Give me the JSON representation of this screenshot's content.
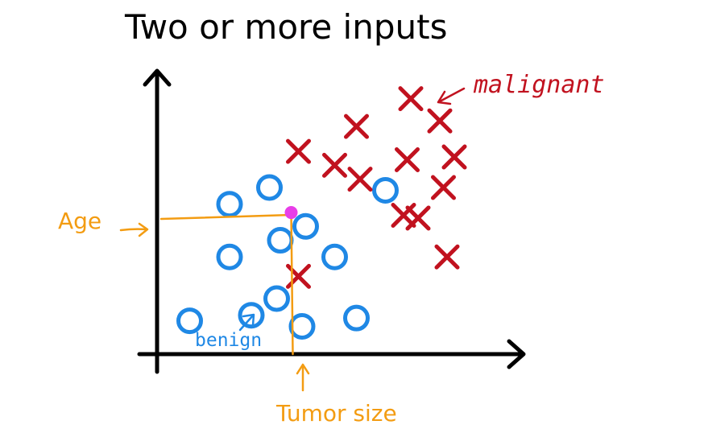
{
  "title": "Two or more inputs",
  "labels": {
    "age": "Age",
    "tumor_size": "Tumor size",
    "malignant": "malignant",
    "benign": "benign"
  },
  "colors": {
    "axis": "#000000",
    "benign": "#1f88e5",
    "malignant": "#c1121f",
    "annotation": "#f39c12",
    "query_point": "#e83ee8"
  },
  "chart_data": {
    "type": "scatter",
    "title": "Two or more inputs",
    "xlabel": "Tumor size",
    "ylabel": "Age",
    "xlim": [
      0,
      10
    ],
    "ylim": [
      0,
      10
    ],
    "grid": false,
    "series": [
      {
        "name": "benign",
        "marker": "circle",
        "points": [
          [
            0.9,
            1.2
          ],
          [
            2.0,
            3.5
          ],
          [
            2.0,
            5.4
          ],
          [
            2.6,
            1.4
          ],
          [
            3.1,
            6.0
          ],
          [
            3.3,
            2.0
          ],
          [
            3.4,
            4.1
          ],
          [
            4.1,
            4.6
          ],
          [
            4.0,
            1.0
          ],
          [
            4.9,
            3.5
          ],
          [
            5.5,
            1.3
          ],
          [
            6.3,
            5.9
          ]
        ]
      },
      {
        "name": "malignant",
        "marker": "x",
        "points": [
          [
            3.9,
            2.8
          ],
          [
            3.9,
            7.3
          ],
          [
            4.9,
            6.8
          ],
          [
            5.5,
            8.2
          ],
          [
            5.6,
            6.3
          ],
          [
            6.8,
            5.0
          ],
          [
            6.9,
            7.0
          ],
          [
            7.0,
            9.2
          ],
          [
            7.2,
            4.9
          ],
          [
            7.8,
            8.4
          ],
          [
            7.9,
            6.0
          ],
          [
            8.0,
            3.5
          ],
          [
            8.2,
            7.1
          ]
        ]
      },
      {
        "name": "",
        "marker": "dot",
        "points": [
          [
            3.7,
            5.1
          ]
        ]
      }
    ]
  }
}
